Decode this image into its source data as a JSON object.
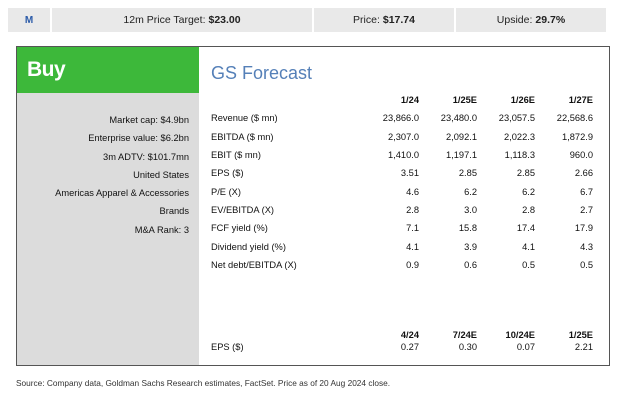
{
  "topbar": {
    "m_label": "M",
    "target_label": "12m Price Target:",
    "target_value": "$23.00",
    "price_label": "Price:",
    "price_value": "$17.74",
    "upside_label": "Upside:",
    "upside_value": "29.7%"
  },
  "rating": "Buy",
  "meta": [
    "Market cap: $4.9bn",
    "Enterprise value: $6.2bn",
    "3m ADTV: $101.7mn",
    "United States",
    "Americas Apparel & Accessories",
    "Brands",
    "M&A Rank: 3"
  ],
  "forecast": {
    "title": "GS Forecast",
    "columns": [
      "1/24",
      "1/25E",
      "1/26E",
      "1/27E"
    ],
    "rows": [
      {
        "label": "Revenue ($ mn)",
        "values": [
          "23,866.0",
          "23,480.0",
          "23,057.5",
          "22,568.6"
        ]
      },
      {
        "label": "EBITDA ($ mn)",
        "values": [
          "2,307.0",
          "2,092.1",
          "2,022.3",
          "1,872.9"
        ]
      },
      {
        "label": "EBIT ($ mn)",
        "values": [
          "1,410.0",
          "1,197.1",
          "1,118.3",
          "960.0"
        ]
      },
      {
        "label": "EPS ($)",
        "values": [
          "3.51",
          "2.85",
          "2.85",
          "2.66"
        ]
      },
      {
        "label": "P/E (X)",
        "values": [
          "4.6",
          "6.2",
          "6.2",
          "6.7"
        ]
      },
      {
        "label": "EV/EBITDA (X)",
        "values": [
          "2.8",
          "3.0",
          "2.8",
          "2.7"
        ]
      },
      {
        "label": "FCF yield (%)",
        "values": [
          "7.1",
          "15.8",
          "17.4",
          "17.9"
        ]
      },
      {
        "label": "Dividend yield (%)",
        "values": [
          "4.1",
          "3.9",
          "4.1",
          "4.3"
        ]
      },
      {
        "label": "Net debt/EBITDA (X)",
        "values": [
          "0.9",
          "0.6",
          "0.5",
          "0.5"
        ]
      }
    ],
    "quarterly": {
      "columns": [
        "4/24",
        "7/24E",
        "10/24E",
        "1/25E"
      ],
      "label": "EPS ($)",
      "values": [
        "0.27",
        "0.30",
        "0.07",
        "2.21"
      ]
    }
  },
  "source": "Source: Company data, Goldman Sachs Research estimates, FactSet. Price as of 20 Aug 2024 close."
}
